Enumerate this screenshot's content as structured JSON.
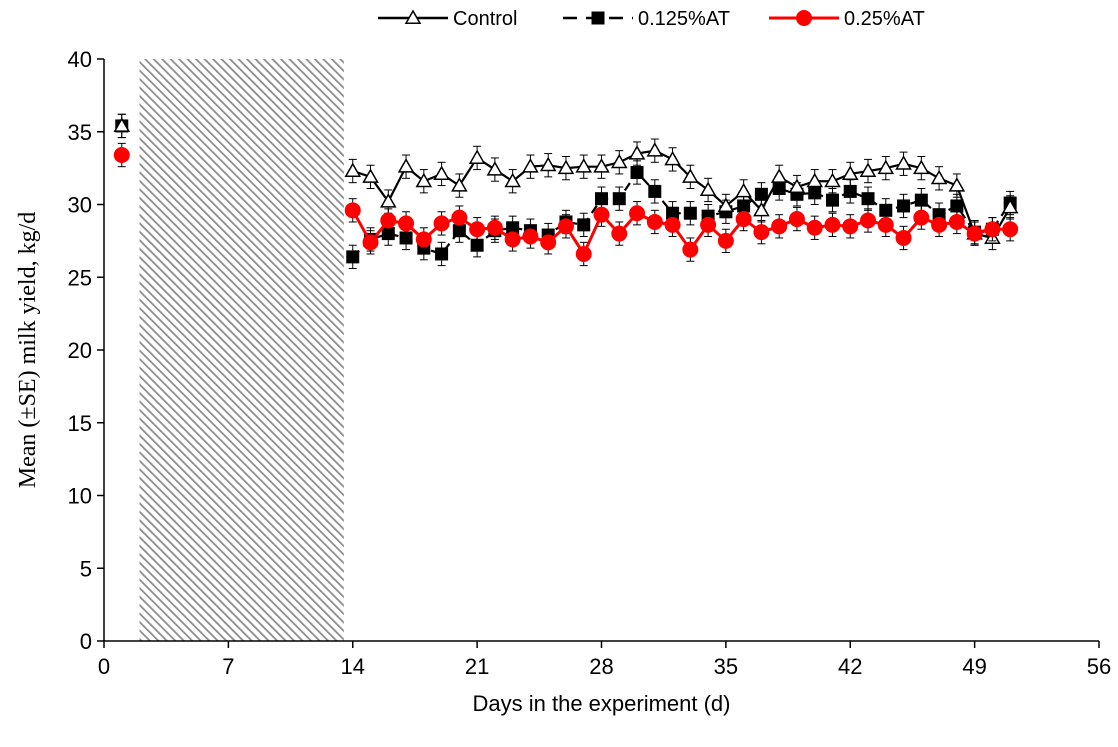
{
  "chart_data": {
    "type": "line",
    "xlabel": "Days in the experiment (d)",
    "ylabel": "Mean (±SE) milk yield, kg/d",
    "xlim": [
      0,
      56
    ],
    "ylim": [
      0,
      40
    ],
    "xticks": [
      0,
      7,
      14,
      21,
      28,
      35,
      42,
      49,
      56
    ],
    "yticks": [
      0,
      5,
      10,
      15,
      20,
      25,
      30,
      35,
      40
    ],
    "grid": false,
    "legend_position": "top",
    "shaded_region": {
      "x_start": 2,
      "x_end": 13.5
    },
    "series": [
      {
        "name": "Control",
        "color": "#000000",
        "marker": "triangle-open",
        "line_style": "solid",
        "se": 0.8,
        "x": [
          1,
          14,
          15,
          16,
          17,
          18,
          19,
          20,
          21,
          22,
          23,
          24,
          25,
          26,
          27,
          28,
          29,
          30,
          31,
          32,
          33,
          34,
          35,
          36,
          37,
          38,
          39,
          40,
          41,
          42,
          43,
          44,
          45,
          46,
          47,
          48,
          49,
          50,
          51
        ],
        "y": [
          35.4,
          32.3,
          31.9,
          30.2,
          32.6,
          31.6,
          32.1,
          31.3,
          33.2,
          32.4,
          31.6,
          32.6,
          32.7,
          32.5,
          32.6,
          32.6,
          32.9,
          33.5,
          33.7,
          33.1,
          31.9,
          31.0,
          29.9,
          30.9,
          29.6,
          31.9,
          31.2,
          31.6,
          31.6,
          32.1,
          32.3,
          32.5,
          32.8,
          32.5,
          31.8,
          31.3,
          28.0,
          27.7,
          29.8
        ]
      },
      {
        "name": "0.125%AT",
        "color": "#000000",
        "marker": "square-filled",
        "line_style": "dashed",
        "se": 0.8,
        "x": [
          1,
          14,
          15,
          16,
          17,
          18,
          19,
          20,
          21,
          22,
          23,
          24,
          25,
          26,
          27,
          28,
          29,
          30,
          31,
          32,
          33,
          34,
          35,
          36,
          37,
          38,
          39,
          40,
          41,
          42,
          43,
          44,
          45,
          46,
          47,
          48,
          49,
          50,
          51
        ],
        "y": [
          35.4,
          26.4,
          27.6,
          28.0,
          27.7,
          27.0,
          26.6,
          28.2,
          27.2,
          28.2,
          28.4,
          28.2,
          27.9,
          28.8,
          28.6,
          30.4,
          30.4,
          32.2,
          30.9,
          29.4,
          29.4,
          29.2,
          29.5,
          29.9,
          30.7,
          31.1,
          30.7,
          30.8,
          30.3,
          30.9,
          30.4,
          29.6,
          29.9,
          30.3,
          29.3,
          29.9,
          28.1,
          28.3,
          30.1
        ]
      },
      {
        "name": "0.25%AT",
        "color": "#ff0000",
        "marker": "circle-filled",
        "line_style": "solid",
        "se": 0.8,
        "x": [
          1,
          14,
          15,
          16,
          17,
          18,
          19,
          20,
          21,
          22,
          23,
          24,
          25,
          26,
          27,
          28,
          29,
          30,
          31,
          32,
          33,
          34,
          35,
          36,
          37,
          38,
          39,
          40,
          41,
          42,
          43,
          44,
          45,
          46,
          47,
          48,
          49,
          50,
          51
        ],
        "y": [
          33.4,
          29.6,
          27.4,
          28.9,
          28.7,
          27.6,
          28.7,
          29.1,
          28.3,
          28.4,
          27.6,
          27.8,
          27.4,
          28.5,
          26.6,
          29.3,
          28.0,
          29.4,
          28.8,
          28.6,
          26.9,
          28.6,
          27.5,
          29.0,
          28.1,
          28.5,
          29.0,
          28.4,
          28.6,
          28.5,
          28.9,
          28.6,
          27.7,
          29.1,
          28.6,
          28.8,
          28.0,
          28.3,
          28.3
        ]
      }
    ]
  }
}
